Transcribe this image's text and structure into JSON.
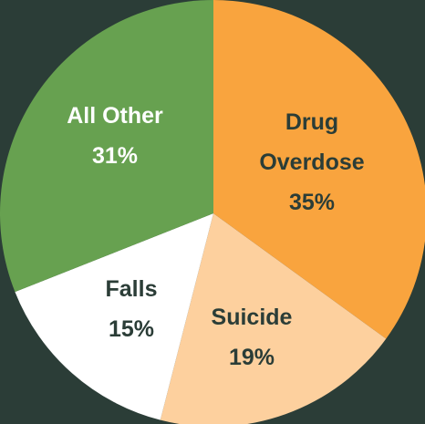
{
  "chart_data": {
    "type": "pie",
    "start_angle_deg": 0,
    "direction": "clockwise",
    "slices": [
      {
        "label_lines": [
          "Drug",
          "Overdose"
        ],
        "value_label": "35%",
        "value": 35,
        "color": "#f9a43e"
      },
      {
        "label_lines": [
          "Suicide"
        ],
        "value_label": "19%",
        "value": 19,
        "color": "#fdd09e"
      },
      {
        "label_lines": [
          "Falls"
        ],
        "value_label": "15%",
        "value": 15,
        "color": "#ffffff"
      },
      {
        "label_lines": [
          "All Other"
        ],
        "value_label": "31%",
        "value": 31,
        "color": "#67a150"
      }
    ]
  },
  "colors": {
    "background": "#2b3d37",
    "label_dark": "#2b3d37",
    "label_light": "#ffffff"
  }
}
